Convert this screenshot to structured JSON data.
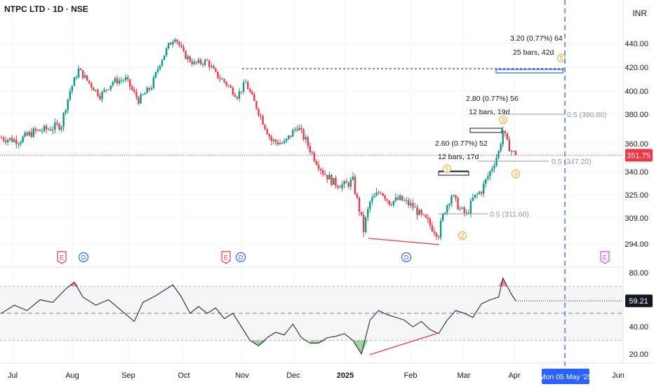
{
  "header": {
    "symbol": "NTPC LTD · 1D · NSE",
    "currency": "INR"
  },
  "colors": {
    "up": "#089981",
    "down": "#f23645",
    "price_line": "#f23645",
    "fib": "#9598a1",
    "wave": "#f5a623",
    "accent": "#2962ff",
    "rsi_line": "#131722",
    "rsi_over": "#f23645",
    "rsi_under": "#4caf50",
    "earnings": "#f23645",
    "earnings_future": "#e040fb",
    "dividend": "#2962ff"
  },
  "chart_data": [
    {
      "type": "candlestick",
      "y_ticks": [
        440.0,
        420.0,
        400.0,
        380.0,
        360.0,
        340.0,
        325.0,
        309.0,
        294.0
      ],
      "x_ticks": [
        "Jul",
        "Aug",
        "Sep",
        "Oct",
        "Nov",
        "Dec",
        "2025",
        "Feb",
        "Mar",
        "Apr",
        "Jun"
      ],
      "crosshair_x_label": "Mon 05 May '25",
      "last_price": "351.75",
      "close_series": [
        {
          "t": 0,
          "v": 364
        },
        {
          "t": 8,
          "v": 362
        },
        {
          "t": 15,
          "v": 368
        },
        {
          "t": 22,
          "v": 370
        },
        {
          "t": 28,
          "v": 373
        },
        {
          "t": 32,
          "v": 400
        },
        {
          "t": 36,
          "v": 418
        },
        {
          "t": 40,
          "v": 409
        },
        {
          "t": 46,
          "v": 396
        },
        {
          "t": 52,
          "v": 408
        },
        {
          "t": 58,
          "v": 410
        },
        {
          "t": 64,
          "v": 392
        },
        {
          "t": 70,
          "v": 404
        },
        {
          "t": 74,
          "v": 424
        },
        {
          "t": 78,
          "v": 438
        },
        {
          "t": 81,
          "v": 446
        },
        {
          "t": 85,
          "v": 431
        },
        {
          "t": 90,
          "v": 423
        },
        {
          "t": 96,
          "v": 425
        },
        {
          "t": 100,
          "v": 414
        },
        {
          "t": 104,
          "v": 408
        },
        {
          "t": 110,
          "v": 396
        },
        {
          "t": 114,
          "v": 407
        },
        {
          "t": 120,
          "v": 382
        },
        {
          "t": 126,
          "v": 362
        },
        {
          "t": 132,
          "v": 360
        },
        {
          "t": 138,
          "v": 372
        },
        {
          "t": 142,
          "v": 362
        },
        {
          "t": 146,
          "v": 350
        },
        {
          "t": 150,
          "v": 340
        },
        {
          "t": 155,
          "v": 333
        },
        {
          "t": 160,
          "v": 331
        },
        {
          "t": 164,
          "v": 334
        },
        {
          "t": 169,
          "v": 302
        },
        {
          "t": 172,
          "v": 320
        },
        {
          "t": 177,
          "v": 328
        },
        {
          "t": 181,
          "v": 320
        },
        {
          "t": 186,
          "v": 322
        },
        {
          "t": 192,
          "v": 317
        },
        {
          "t": 196,
          "v": 310
        },
        {
          "t": 200,
          "v": 305
        },
        {
          "t": 204,
          "v": 300
        },
        {
          "t": 207,
          "v": 315
        },
        {
          "t": 210,
          "v": 325
        },
        {
          "t": 214,
          "v": 315
        },
        {
          "t": 217,
          "v": 311
        },
        {
          "t": 220,
          "v": 322
        },
        {
          "t": 224,
          "v": 328
        },
        {
          "t": 228,
          "v": 340
        },
        {
          "t": 232,
          "v": 354
        },
        {
          "t": 234,
          "v": 369
        },
        {
          "t": 236,
          "v": 360
        },
        {
          "t": 238,
          "v": 355
        },
        {
          "t": 240,
          "v": 351.75
        }
      ],
      "annotations": [
        {
          "label": "3.20 (0.77%) 64",
          "sub": "25 bars, 42d"
        },
        {
          "label": "2.80 (0.77%) 56",
          "sub": "12 bars, 19d"
        },
        {
          "label": "2.60 (0.77%) 52",
          "sub": "12 bars, 17d"
        },
        {
          "label": "0.5 (380.80)"
        },
        {
          "label": "0.5 (347.20)"
        },
        {
          "label": "0.5 (311.60)"
        }
      ],
      "waves": [
        "1",
        "2",
        "3",
        "4",
        "5"
      ],
      "event_badges": [
        {
          "kind": "earnings",
          "letter": "E"
        },
        {
          "kind": "dividend",
          "letter": "D"
        },
        {
          "kind": "earnings",
          "letter": "E"
        },
        {
          "kind": "dividend",
          "letter": "D"
        },
        {
          "kind": "dividend",
          "letter": "D"
        },
        {
          "kind": "earnings_future",
          "letter": "E"
        }
      ]
    },
    {
      "type": "line",
      "name": "RSI",
      "y_ticks": [
        80.0,
        40.0,
        20.0
      ],
      "bands": [
        70,
        50,
        30
      ],
      "last_value": "59.21",
      "series": [
        {
          "t": 0,
          "v": 50
        },
        {
          "t": 6,
          "v": 56
        },
        {
          "t": 12,
          "v": 52
        },
        {
          "t": 18,
          "v": 60
        },
        {
          "t": 24,
          "v": 58
        },
        {
          "t": 30,
          "v": 68
        },
        {
          "t": 34,
          "v": 73
        },
        {
          "t": 38,
          "v": 62
        },
        {
          "t": 44,
          "v": 56
        },
        {
          "t": 50,
          "v": 60
        },
        {
          "t": 56,
          "v": 52
        },
        {
          "t": 62,
          "v": 44
        },
        {
          "t": 66,
          "v": 58
        },
        {
          "t": 72,
          "v": 63
        },
        {
          "t": 76,
          "v": 67
        },
        {
          "t": 80,
          "v": 71
        },
        {
          "t": 84,
          "v": 62
        },
        {
          "t": 88,
          "v": 50
        },
        {
          "t": 92,
          "v": 55
        },
        {
          "t": 96,
          "v": 50
        },
        {
          "t": 100,
          "v": 54
        },
        {
          "t": 104,
          "v": 46
        },
        {
          "t": 108,
          "v": 50
        },
        {
          "t": 112,
          "v": 40
        },
        {
          "t": 116,
          "v": 30
        },
        {
          "t": 120,
          "v": 26
        },
        {
          "t": 124,
          "v": 32
        },
        {
          "t": 128,
          "v": 36
        },
        {
          "t": 132,
          "v": 34
        },
        {
          "t": 136,
          "v": 42
        },
        {
          "t": 140,
          "v": 32
        },
        {
          "t": 144,
          "v": 28
        },
        {
          "t": 148,
          "v": 28
        },
        {
          "t": 152,
          "v": 32
        },
        {
          "t": 156,
          "v": 33
        },
        {
          "t": 160,
          "v": 35
        },
        {
          "t": 164,
          "v": 30
        },
        {
          "t": 168,
          "v": 20
        },
        {
          "t": 172,
          "v": 45
        },
        {
          "t": 176,
          "v": 52
        },
        {
          "t": 180,
          "v": 49
        },
        {
          "t": 184,
          "v": 47
        },
        {
          "t": 188,
          "v": 45
        },
        {
          "t": 192,
          "v": 40
        },
        {
          "t": 196,
          "v": 44
        },
        {
          "t": 200,
          "v": 38
        },
        {
          "t": 204,
          "v": 35
        },
        {
          "t": 208,
          "v": 45
        },
        {
          "t": 212,
          "v": 52
        },
        {
          "t": 216,
          "v": 50
        },
        {
          "t": 220,
          "v": 47
        },
        {
          "t": 224,
          "v": 57
        },
        {
          "t": 228,
          "v": 60
        },
        {
          "t": 232,
          "v": 62
        },
        {
          "t": 234,
          "v": 76
        },
        {
          "t": 236,
          "v": 70
        },
        {
          "t": 238,
          "v": 64
        },
        {
          "t": 240,
          "v": 59.21
        }
      ]
    }
  ]
}
